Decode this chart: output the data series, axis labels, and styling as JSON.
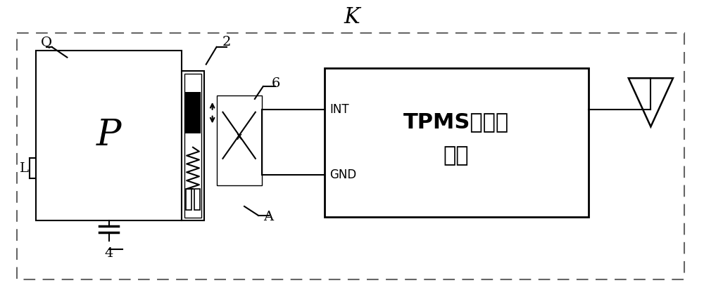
{
  "bg_color": "#ffffff",
  "line_color": "#000000",
  "dashed_color": "#666666",
  "title": "K",
  "label_Q": "Q",
  "label_L": "L",
  "label_P": "P",
  "label_2": "2",
  "label_4": "4",
  "label_6": "6",
  "label_A": "A",
  "label_INT": "INT",
  "label_GND": "GND",
  "label_TPMS": "TPMS传感器\n电路",
  "fig_width": 10.0,
  "fig_height": 4.23,
  "dpi": 100
}
